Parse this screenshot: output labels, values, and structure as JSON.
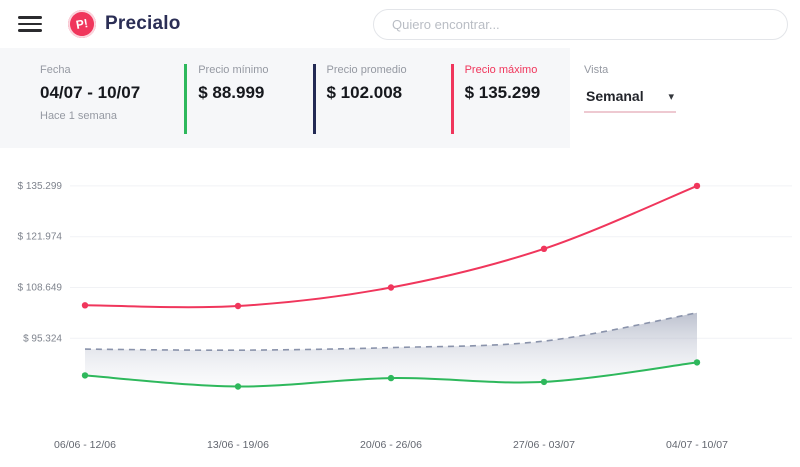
{
  "colors": {
    "accent": "#f0365c",
    "green": "#2eb85c",
    "navy": "#232a54",
    "panel_bg": "#f6f7f9"
  },
  "header": {
    "logo_badge": "P!",
    "logo_text": "Precialo",
    "search_placeholder": "Quiero encontrar..."
  },
  "stats": {
    "fecha": {
      "label": "Fecha",
      "value": "04/07 - 10/07",
      "sub": "Hace 1 semana"
    },
    "min": {
      "label": "Precio mínimo",
      "value": "$ 88.999",
      "color": "#2eb85c"
    },
    "avg": {
      "label": "Precio promedio",
      "value": "$ 102.008",
      "color": "#232a54"
    },
    "max": {
      "label": "Precio máximo",
      "value": "$ 135.299",
      "color": "#f0365c"
    },
    "vista": {
      "label": "Vista",
      "value": "Semanal"
    }
  },
  "chart_data": {
    "type": "line",
    "title": "",
    "categories": [
      "06/06 - 12/06",
      "13/06 - 19/06",
      "20/06 - 26/06",
      "27/06 - 03/07",
      "04/07 - 10/07"
    ],
    "series": [
      {
        "name": "Precio máximo",
        "color": "#f0365c",
        "dashed": false,
        "points": true,
        "values": [
          104000,
          103800,
          108649,
          118800,
          135299
        ]
      },
      {
        "name": "Precio promedio",
        "color": "#8a93ab",
        "dashed": true,
        "points": false,
        "values": [
          92500,
          92200,
          92900,
          94600,
          102008
        ]
      },
      {
        "name": "Precio mínimo",
        "color": "#2eb85c",
        "dashed": false,
        "points": true,
        "values": [
          85600,
          82700,
          84900,
          83900,
          88999
        ]
      }
    ],
    "yticks": [
      {
        "value": 135299,
        "label": "$ 135.299"
      },
      {
        "value": 121974,
        "label": "$ 121.974"
      },
      {
        "value": 108649,
        "label": "$ 108.649"
      },
      {
        "value": 95324,
        "label": "$ 95.324"
      }
    ],
    "ylim": [
      76000,
      140000
    ],
    "band": {
      "upper": "Precio promedio",
      "lower": "Precio mínimo"
    },
    "grid": true,
    "legend": "none"
  }
}
